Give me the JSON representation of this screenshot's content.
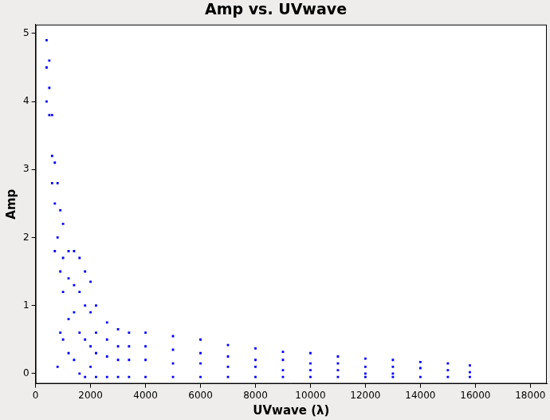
{
  "chart_data": {
    "type": "scatter",
    "title": "Amp vs. UVwave",
    "x_label": "UVwave (λ)",
    "y_label": "Amp",
    "color": "#0000ff",
    "marker": "point",
    "grid": false,
    "xlim": [
      0,
      18600
    ],
    "xticks": [
      0,
      2000,
      4000,
      6000,
      8000,
      10000,
      12000,
      14000,
      16000,
      18000
    ],
    "ylim": [
      -0.15,
      5.13
    ],
    "yticks": [
      0,
      1,
      2,
      3,
      4,
      5
    ],
    "x": [
      400,
      400,
      400,
      500,
      500,
      500,
      600,
      600,
      600,
      700,
      700,
      700,
      800,
      800,
      800,
      900,
      900,
      900,
      1000,
      1000,
      1000,
      1000,
      1200,
      1200,
      1200,
      1200,
      1400,
      1400,
      1400,
      1400,
      1600,
      1600,
      1600,
      1600,
      1800,
      1800,
      1800,
      1800,
      2000,
      2000,
      2000,
      2000,
      2200,
      2200,
      2200,
      2200,
      2600,
      2600,
      2600,
      2600,
      3000,
      3000,
      3000,
      3000,
      3400,
      3400,
      3400,
      3400,
      4000,
      4000,
      4000,
      4000,
      5000,
      5000,
      5000,
      5000,
      6000,
      6000,
      6000,
      6000,
      7000,
      7000,
      7000,
      7000,
      8000,
      8000,
      8000,
      8000,
      9000,
      9000,
      9000,
      9000,
      10000,
      10000,
      10000,
      10000,
      11000,
      11000,
      11000,
      11000,
      12000,
      12000,
      12000,
      12000,
      13000,
      13000,
      13000,
      13000,
      14000,
      14000,
      14000,
      15000,
      15000,
      15000,
      15800,
      15800,
      15800
    ],
    "values": [
      4.9,
      4.5,
      4.0,
      4.6,
      4.2,
      3.8,
      3.8,
      3.2,
      2.8,
      3.1,
      2.5,
      1.8,
      2.8,
      2.0,
      0.1,
      2.4,
      1.5,
      0.6,
      2.2,
      1.7,
      1.2,
      0.5,
      1.8,
      1.4,
      0.8,
      0.3,
      1.8,
      1.3,
      0.9,
      0.2,
      1.7,
      1.2,
      0.6,
      0.0,
      1.5,
      1.0,
      0.5,
      -0.05,
      1.35,
      0.9,
      0.4,
      0.1,
      1.0,
      0.6,
      0.3,
      -0.05,
      0.75,
      0.5,
      0.25,
      -0.05,
      0.65,
      0.4,
      0.2,
      -0.05,
      0.6,
      0.4,
      0.2,
      -0.05,
      0.6,
      0.4,
      0.2,
      -0.05,
      0.55,
      0.35,
      0.15,
      -0.05,
      0.5,
      0.3,
      0.15,
      -0.05,
      0.42,
      0.25,
      0.1,
      -0.05,
      0.37,
      0.2,
      0.1,
      -0.05,
      0.32,
      0.2,
      0.05,
      -0.05,
      0.3,
      0.15,
      0.05,
      -0.05,
      0.25,
      0.15,
      0.05,
      -0.05,
      0.22,
      0.1,
      0.0,
      -0.05,
      0.2,
      0.1,
      0.0,
      -0.05,
      0.17,
      0.08,
      -0.05,
      0.15,
      0.05,
      -0.05,
      0.12,
      0.02,
      -0.05
    ]
  }
}
